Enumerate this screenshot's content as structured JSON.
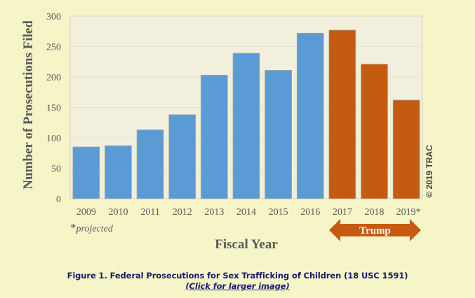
{
  "chart_data": {
    "type": "bar",
    "title": "",
    "xlabel": "Fiscal Year",
    "ylabel": "Number of Prosecutions Filed",
    "ylim": [
      0,
      300
    ],
    "yticks": [
      0,
      50,
      100,
      150,
      200,
      250,
      300
    ],
    "grid": true,
    "legend": null,
    "categories": [
      "2009",
      "2010",
      "2011",
      "2012",
      "2013",
      "2014",
      "2015",
      "2016",
      "2017",
      "2018",
      "2019*"
    ],
    "values": [
      85,
      87,
      113,
      138,
      203,
      239,
      211,
      272,
      277,
      221,
      162
    ],
    "bar_colors": [
      "#5b9bd5",
      "#5b9bd5",
      "#5b9bd5",
      "#5b9bd5",
      "#5b9bd5",
      "#5b9bd5",
      "#5b9bd5",
      "#5b9bd5",
      "#c55a11",
      "#c55a11",
      "#c55a11"
    ],
    "annotations": {
      "footnote": "*projected",
      "footnote_star": "*",
      "footnote_text": "projected",
      "range_arrow": {
        "label": "Trump",
        "from": "2017",
        "to": "2019*",
        "color": "#c55a11"
      },
      "copyright": "© 2019 TRAC"
    }
  },
  "colors": {
    "page_background": "#f5f5c8",
    "plot_background": "#f2f0dc",
    "obama_bars": "#5b9bd5",
    "trump_bars": "#c55a11",
    "axis_text": "#595959",
    "caption_text": "#1a1a70"
  },
  "caption": {
    "title": "Figure 1. Federal Prosecutions for Sex Trafficking of Children (18 USC 1591)",
    "link": "(Click for larger image)"
  }
}
